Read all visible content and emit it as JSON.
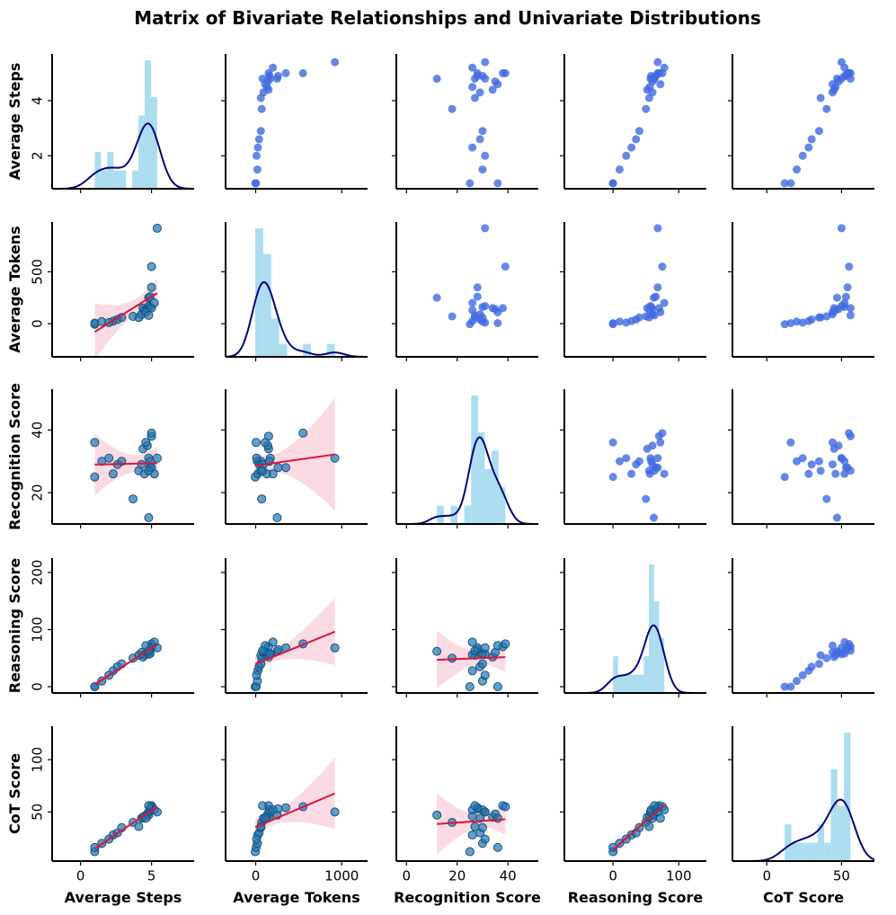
{
  "chart_data": {
    "type": "pairplot",
    "title": "Matrix of Bivariate Relationships and Univariate Distributions",
    "upper_color": "#4169e1",
    "lower_color": "#1f77b4",
    "line_color": "#dc143c",
    "band_color": "#f4a6b8",
    "hist_color": "#87ceeb",
    "kde_color": "#000080",
    "variables": [
      {
        "name": "Average Steps",
        "xlim": [
          -2,
          8
        ],
        "xticks": [
          0,
          5
        ],
        "ylim": [
          0.8,
          5.7
        ],
        "yticks": [
          2,
          4
        ],
        "values": [
          1.0,
          1.0,
          1.5,
          2.3,
          2.6,
          2.9,
          3.7,
          4.1,
          4.3,
          4.4,
          4.5,
          4.7,
          4.8,
          4.8,
          4.9,
          4.9,
          5.0,
          5.0,
          5.0,
          5.2,
          5.4,
          4.6,
          4.8,
          2.0
        ]
      },
      {
        "name": "Average Tokens",
        "xlim": [
          -350,
          1300
        ],
        "xticks": [
          0,
          1000
        ],
        "ylim": [
          -320,
          980
        ],
        "yticks": [
          0,
          500
        ],
        "values": [
          -5,
          5,
          20,
          25,
          40,
          60,
          70,
          60,
          90,
          150,
          130,
          140,
          250,
          170,
          160,
          260,
          350,
          150,
          550,
          200,
          920,
          110,
          80,
          10
        ]
      },
      {
        "name": "Recognition Score",
        "xlim": [
          -4,
          52
        ],
        "xticks": [
          0,
          20,
          40
        ],
        "ylim": [
          10,
          53
        ],
        "yticks": [
          20,
          40
        ],
        "values": [
          25,
          36,
          30,
          26,
          29,
          30,
          18,
          27,
          29,
          34,
          26,
          35,
          12,
          31,
          30,
          28,
          28,
          38,
          39,
          26,
          31,
          36,
          27,
          31
        ]
      },
      {
        "name": "Reasoning Score",
        "xlim": [
          -74,
          142
        ],
        "xticks": [
          0,
          100
        ],
        "ylim": [
          -11,
          225
        ],
        "yticks": [
          0,
          100,
          200
        ],
        "values": [
          0,
          0,
          10,
          28,
          35,
          40,
          50,
          55,
          60,
          52,
          56,
          60,
          62,
          57,
          58,
          65,
          68,
          70,
          75,
          78,
          68,
          72,
          63,
          20
        ]
      },
      {
        "name": "CoT Score",
        "xlim": [
          -23,
          72
        ],
        "xticks": [
          0,
          50
        ],
        "ylim": [
          3,
          132
        ],
        "yticks": [
          50,
          100
        ],
        "values": [
          12,
          16,
          20,
          28,
          30,
          35,
          40,
          36,
          44,
          45,
          46,
          48,
          47,
          50,
          52,
          53,
          54,
          56,
          55,
          52,
          50,
          44,
          56,
          24
        ]
      }
    ]
  }
}
